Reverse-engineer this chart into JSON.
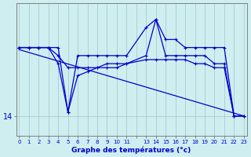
{
  "xlabel": "Graphe des températures (°c)",
  "background_color": "#ceeef0",
  "plot_bg_color": "#ceeef0",
  "line_color": "#0000cc",
  "grid_color": "#a8ccd0",
  "xlim": [
    -0.3,
    23.3
  ],
  "ylim": [
    13.5,
    16.8
  ],
  "series1_x": [
    0,
    1,
    2,
    3,
    4,
    5,
    6,
    7,
    8,
    9,
    10,
    11,
    13,
    14,
    15,
    16,
    17,
    18,
    19,
    20,
    21,
    22,
    23
  ],
  "series1_y": [
    15.7,
    15.7,
    15.7,
    15.7,
    15.7,
    14.1,
    15.5,
    15.5,
    15.5,
    15.5,
    15.5,
    15.5,
    16.2,
    16.4,
    15.9,
    15.9,
    15.7,
    15.7,
    15.7,
    15.7,
    15.7,
    14.0,
    14.0
  ],
  "series2_x": [
    0,
    1,
    2,
    3,
    4,
    5,
    6,
    7,
    8,
    9,
    10,
    11,
    13,
    14,
    15,
    16,
    17,
    18,
    19,
    20,
    21,
    22,
    23
  ],
  "series2_y": [
    15.7,
    15.7,
    15.7,
    15.7,
    15.3,
    14.1,
    15.0,
    15.1,
    15.2,
    15.2,
    15.2,
    15.3,
    15.5,
    16.4,
    15.5,
    15.5,
    15.5,
    15.5,
    15.5,
    15.3,
    15.3,
    14.0,
    14.0
  ],
  "series3_x": [
    0,
    1,
    2,
    3,
    4,
    5,
    6,
    7,
    8,
    9,
    10,
    11,
    13,
    14,
    15,
    16,
    17,
    18,
    19,
    20,
    21,
    22,
    23
  ],
  "series3_y": [
    15.7,
    15.7,
    15.7,
    15.7,
    15.5,
    15.2,
    15.2,
    15.2,
    15.2,
    15.3,
    15.3,
    15.3,
    15.4,
    15.4,
    15.4,
    15.4,
    15.4,
    15.3,
    15.3,
    15.2,
    15.2,
    14.0,
    14.0
  ],
  "trend_x": [
    0,
    23
  ],
  "trend_y": [
    15.65,
    14.0
  ],
  "linewidth": 0.9,
  "marker_size": 2.5
}
